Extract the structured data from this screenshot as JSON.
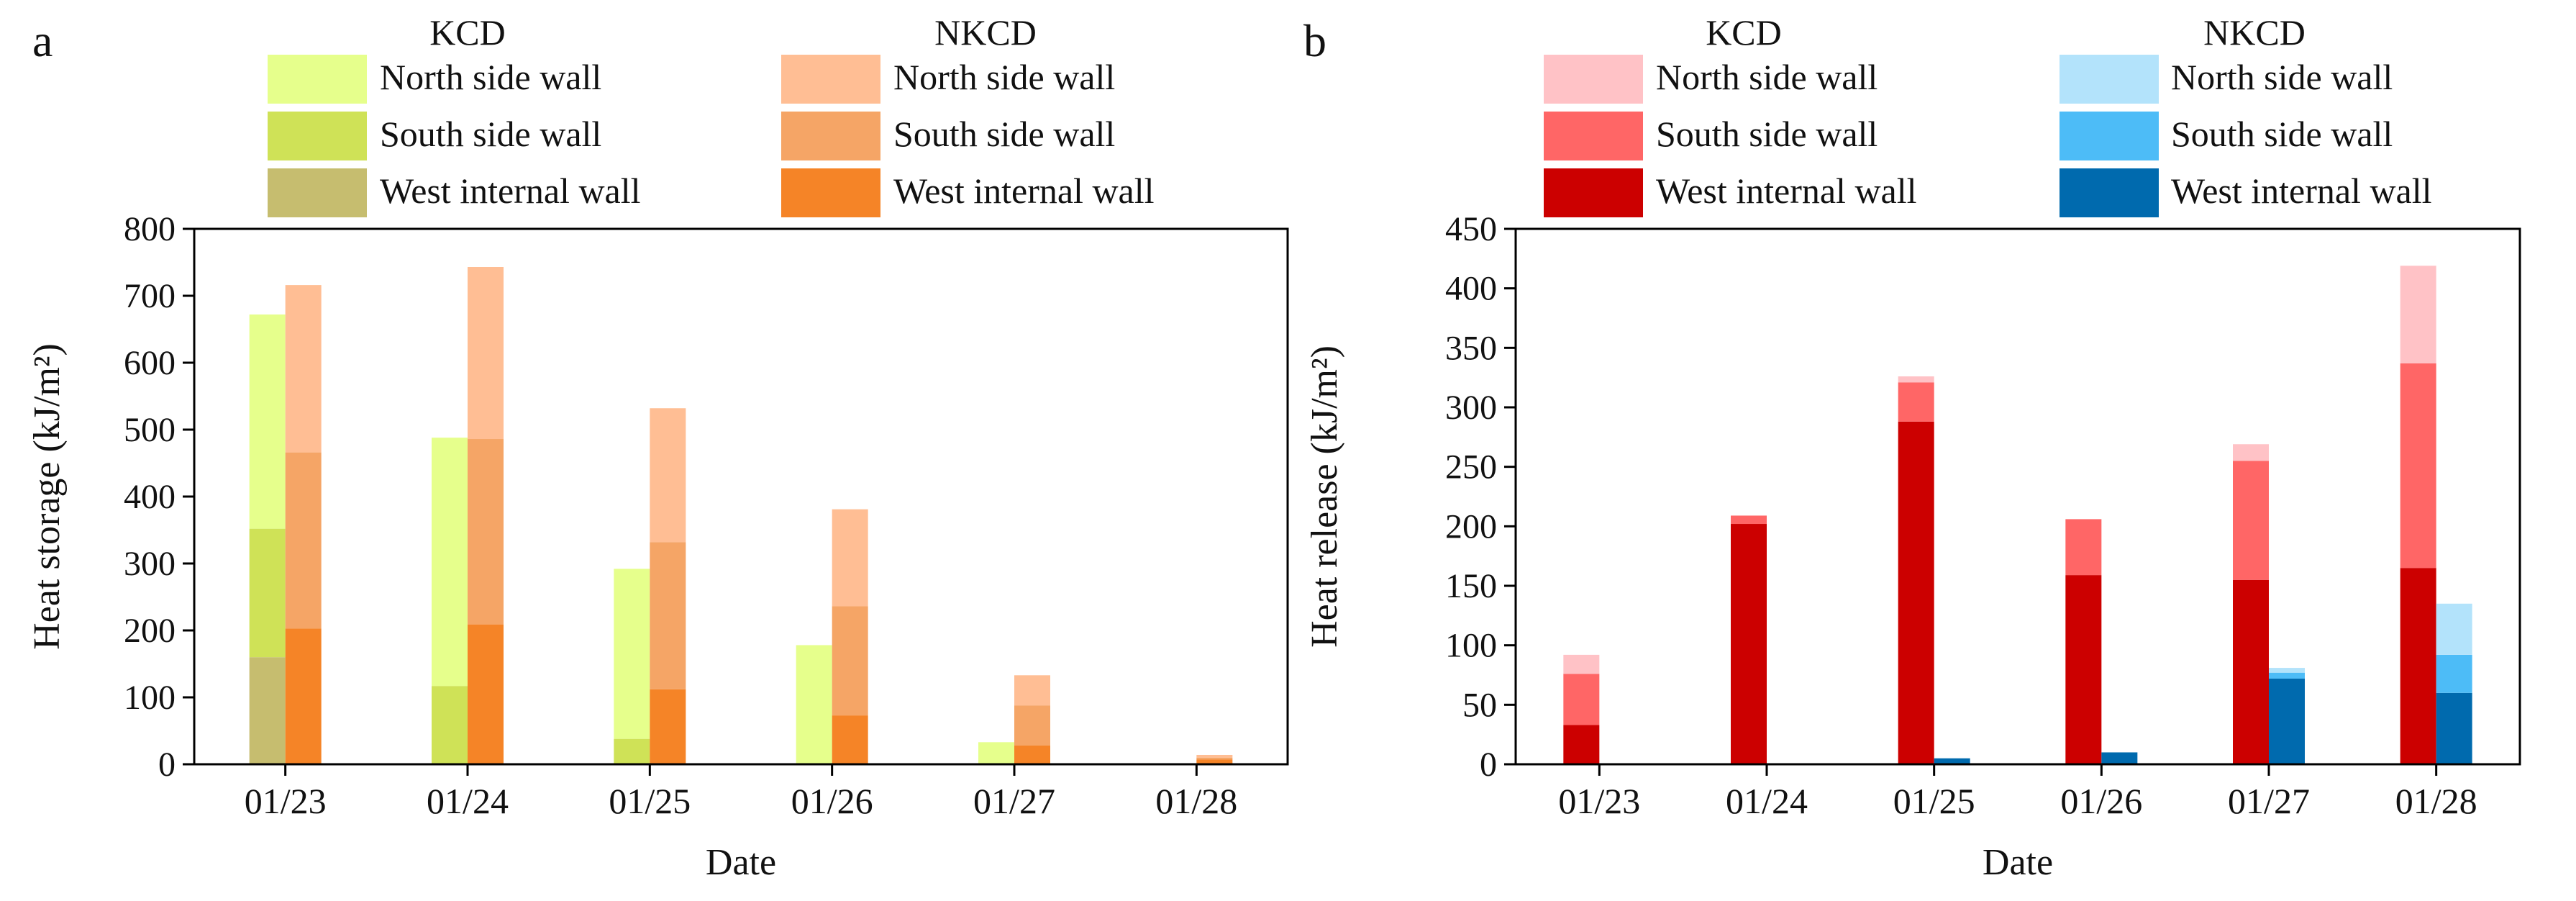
{
  "chart_data": [
    {
      "panel_label": "a",
      "type": "bar",
      "stacked": true,
      "categories": [
        "01/23",
        "01/24",
        "01/25",
        "01/26",
        "01/27",
        "01/28"
      ],
      "xlabel": "Date",
      "ylabel": "Heat storage (kJ/m²)",
      "ylim": [
        0,
        800
      ],
      "yticks": [
        0,
        100,
        200,
        300,
        400,
        500,
        600,
        700,
        800
      ],
      "legend": {
        "groups": [
          {
            "title": "KCD",
            "labels": [
              "North side wall",
              "South side wall",
              "West internal wall"
            ]
          },
          {
            "title": "NKCD",
            "labels": [
              "North side wall",
              "South side wall",
              "West internal wall"
            ]
          }
        ],
        "placement": "top"
      },
      "groups": [
        {
          "name": "KCD",
          "series": [
            {
              "name": "West internal wall",
              "color": "#C6BD6F",
              "values": [
                160,
                0,
                0,
                0,
                0,
                0
              ]
            },
            {
              "name": "South side wall",
              "color": "#CFE257",
              "values": [
                192,
                117,
                38,
                0,
                0,
                0
              ]
            },
            {
              "name": "North side wall",
              "color": "#E6FF8C",
              "values": [
                320,
                371,
                254,
                178,
                33,
                0
              ]
            }
          ]
        },
        {
          "name": "NKCD",
          "series": [
            {
              "name": "West internal wall",
              "color": "#F58427",
              "values": [
                203,
                209,
                112,
                73,
                28,
                7
              ]
            },
            {
              "name": "South side wall",
              "color": "#F5A566",
              "values": [
                263,
                277,
                220,
                163,
                60,
                3
              ]
            },
            {
              "name": "North side wall",
              "color": "#FFBE94",
              "values": [
                250,
                257,
                200,
                145,
                45,
                4
              ]
            }
          ]
        }
      ]
    },
    {
      "panel_label": "b",
      "type": "bar",
      "stacked": true,
      "categories": [
        "01/23",
        "01/24",
        "01/25",
        "01/26",
        "01/27",
        "01/28"
      ],
      "xlabel": "Date",
      "ylabel": "Heat release (kJ/m²)",
      "ylim": [
        0,
        450
      ],
      "yticks": [
        0,
        50,
        100,
        150,
        200,
        250,
        300,
        350,
        400,
        450
      ],
      "legend": {
        "groups": [
          {
            "title": "KCD",
            "labels": [
              "North side wall",
              "South side wall",
              "West internal wall"
            ]
          },
          {
            "title": "NKCD",
            "labels": [
              "North side wall",
              "South side wall",
              "West internal wall"
            ]
          }
        ],
        "placement": "top"
      },
      "groups": [
        {
          "name": "KCD",
          "series": [
            {
              "name": "West internal wall",
              "color": "#CC0000",
              "values": [
                33,
                202,
                288,
                159,
                155,
                165
              ]
            },
            {
              "name": "South side wall",
              "color": "#FF6666",
              "values": [
                43,
                7,
                33,
                47,
                100,
                172
              ]
            },
            {
              "name": "North side wall",
              "color": "#FFC2C6",
              "values": [
                16,
                0,
                5,
                0,
                14,
                82
              ]
            }
          ]
        },
        {
          "name": "NKCD",
          "series": [
            {
              "name": "West internal wall",
              "color": "#006AAE",
              "values": [
                0,
                0,
                5,
                10,
                72,
                60
              ]
            },
            {
              "name": "South side wall",
              "color": "#4DBCF7",
              "values": [
                0,
                0,
                0,
                0,
                5,
                32
              ]
            },
            {
              "name": "North side wall",
              "color": "#B3E3FB",
              "values": [
                0,
                0,
                0,
                0,
                4,
                43
              ]
            }
          ]
        }
      ]
    }
  ]
}
